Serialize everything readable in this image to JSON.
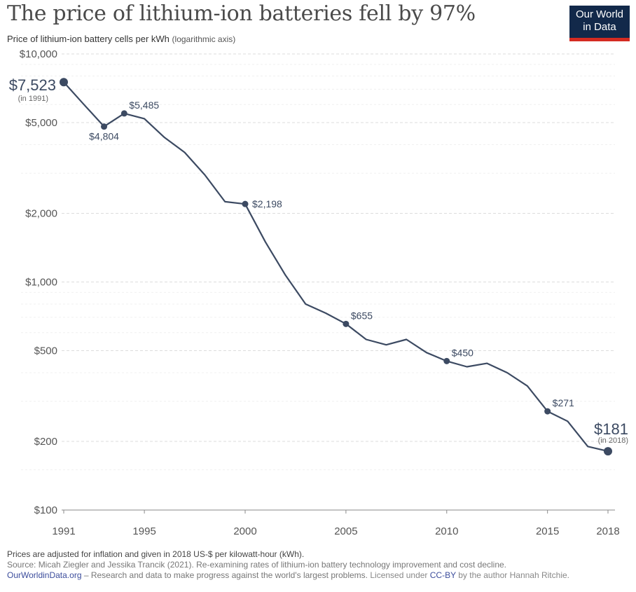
{
  "header": {
    "title": "The price of lithium-ion batteries fell by 97%",
    "subtitle": "Price of lithium-ion battery cells per kWh",
    "subtitle_note": "(logarithmic axis)",
    "logo_line1": "Our World",
    "logo_line2": "in Data"
  },
  "footer": {
    "note": "Prices are adjusted for inflation and given in 2018 US-$ per kilowatt-hour (kWh).",
    "source": "Source: Micah Ziegler and Jessika Trancik (2021). Re-examining rates of lithium-ion battery technology improvement and cost decline.",
    "site": "OurWorldinData.org",
    "tagline": " – Research and data to make progress against the world's largest problems.",
    "license_prefix": "Licensed under ",
    "license": "CC-BY",
    "license_suffix": " by the author Hannah Ritchie."
  },
  "colors": {
    "line": "#3c4a62",
    "grid": "#dcdcdc",
    "tick_text": "#555555",
    "brand": "#12294a",
    "brand_accent": "#d42b21"
  },
  "chart_data": {
    "type": "line",
    "title": "The price of lithium-ion batteries fell by 97%",
    "ylabel": "Price of lithium-ion battery cells per kWh",
    "yscale": "log",
    "ylim": [
      100,
      10000
    ],
    "xlim": [
      1991,
      2018
    ],
    "x_ticks": [
      1991,
      1995,
      2000,
      2005,
      2010,
      2015,
      2018
    ],
    "y_ticks": [
      {
        "value": 100,
        "label": "$100"
      },
      {
        "value": 200,
        "label": "$200"
      },
      {
        "value": 500,
        "label": "$500"
      },
      {
        "value": 1000,
        "label": "$1,000"
      },
      {
        "value": 2000,
        "label": "$2,000"
      },
      {
        "value": 5000,
        "label": "$5,000"
      },
      {
        "value": 10000,
        "label": "$10,000"
      }
    ],
    "grid": true,
    "series": [
      {
        "x": [
          1991,
          1992,
          1993,
          1994,
          1995,
          1996,
          1997,
          1998,
          1999,
          2000,
          2001,
          2002,
          2003,
          2004,
          2005,
          2006,
          2007,
          2008,
          2009,
          2010,
          2011,
          2012,
          2013,
          2014,
          2015,
          2016,
          2017,
          2018
        ],
        "values": [
          7523,
          6000,
          4804,
          5485,
          5200,
          4300,
          3700,
          2950,
          2250,
          2198,
          1500,
          1070,
          800,
          730,
          655,
          560,
          530,
          560,
          490,
          450,
          425,
          440,
          400,
          350,
          271,
          245,
          190,
          181
        ]
      }
    ],
    "annotations": [
      {
        "x": 1991,
        "value": 7523,
        "label": "$7,523",
        "sub": "(in 1991)",
        "style": "big-left"
      },
      {
        "x": 1993,
        "value": 4804,
        "label": "$4,804",
        "style": "below"
      },
      {
        "x": 1994,
        "value": 5485,
        "label": "$5,485",
        "style": "above-right"
      },
      {
        "x": 2000,
        "value": 2198,
        "label": "$2,198",
        "style": "right"
      },
      {
        "x": 2005,
        "value": 655,
        "label": "$655",
        "style": "above-right"
      },
      {
        "x": 2010,
        "value": 450,
        "label": "$450",
        "style": "above-right"
      },
      {
        "x": 2015,
        "value": 271,
        "label": "$271",
        "style": "above-right"
      },
      {
        "x": 2018,
        "value": 181,
        "label": "$181",
        "sub": "(in 2018)",
        "style": "big-above"
      }
    ]
  }
}
